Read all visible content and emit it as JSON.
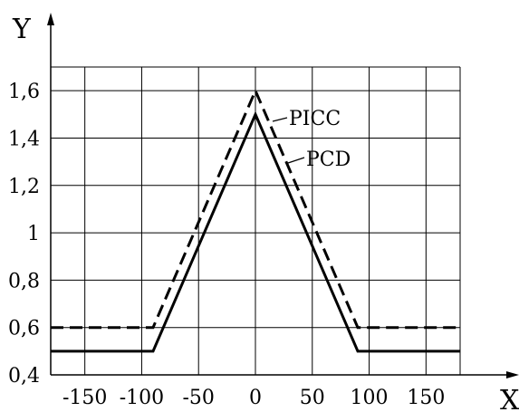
{
  "chart_data": {
    "type": "line",
    "xlabel": "X",
    "ylabel": "Y",
    "xlim": [
      -180,
      180
    ],
    "ylim": [
      0.4,
      1.7
    ],
    "x_ticks": [
      -150,
      -100,
      -50,
      0,
      50,
      100,
      150
    ],
    "x_tick_labels": [
      "-150",
      "-100",
      "-50",
      "0",
      "50",
      "100",
      "150"
    ],
    "y_ticks": [
      0.4,
      0.6,
      0.8,
      1.0,
      1.2,
      1.4,
      1.6
    ],
    "y_tick_labels": [
      "0,4",
      "0,6",
      "0,8",
      "1",
      "1,2",
      "1,4",
      "1,6"
    ],
    "grid": true,
    "series": [
      {
        "name": "PICC",
        "style": "dashed",
        "color": "#000000",
        "points": [
          [
            -180,
            0.6
          ],
          [
            -90,
            0.6
          ],
          [
            0,
            1.6
          ],
          [
            90,
            0.6
          ],
          [
            180,
            0.6
          ]
        ]
      },
      {
        "name": "PCD",
        "style": "solid",
        "color": "#000000",
        "points": [
          [
            -180,
            0.5
          ],
          [
            -90,
            0.5
          ],
          [
            0,
            1.5
          ],
          [
            90,
            0.5
          ],
          [
            180,
            0.5
          ]
        ]
      }
    ]
  }
}
